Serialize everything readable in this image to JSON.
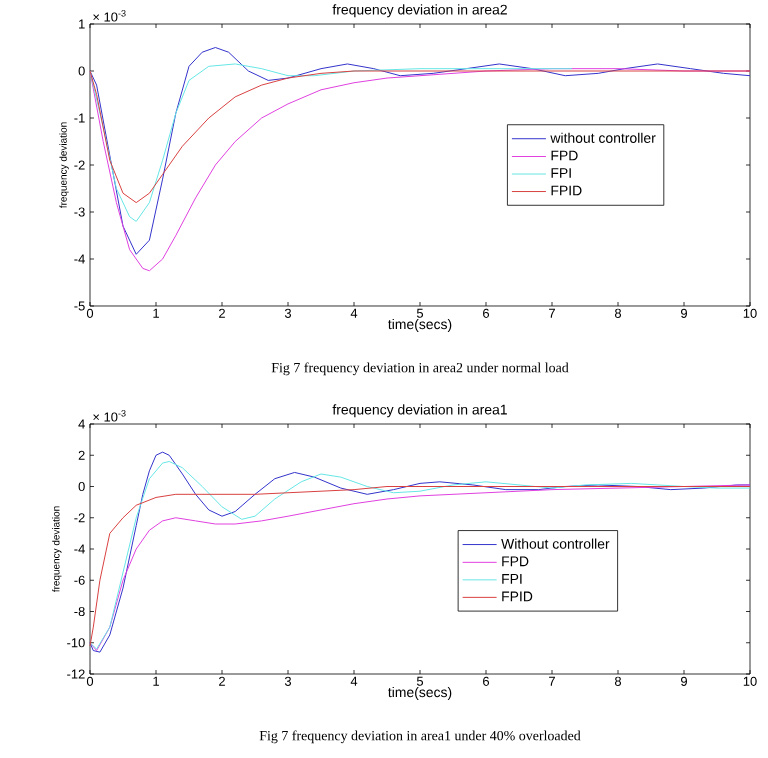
{
  "chart_data": [
    {
      "type": "line",
      "title": "frequency deviation in area2",
      "xlabel": "time(secs)",
      "ylabel": "frequency deviation",
      "annotations": [
        "× 10$^{-3}$",
        "Fig 7  frequency deviation in area2 under normal load"
      ],
      "xlim": [
        0,
        10
      ],
      "ylim": [
        -5,
        1
      ],
      "xticks": [
        0,
        1,
        2,
        3,
        4,
        5,
        6,
        7,
        8,
        9,
        10
      ],
      "yticks": [
        -5,
        -4,
        -3,
        -2,
        -1,
        0,
        1
      ],
      "legend": "right",
      "grid": false,
      "marker": "none",
      "line_style": "solid",
      "series": [
        {
          "name": "without controller",
          "color": "#3333cc",
          "x": [
            0,
            0.1,
            0.3,
            0.5,
            0.7,
            0.9,
            1.1,
            1.3,
            1.5,
            1.7,
            1.9,
            2.1,
            2.4,
            2.7,
            3.0,
            3.5,
            3.9,
            4.3,
            4.7,
            5.2,
            5.7,
            6.2,
            6.7,
            7.2,
            7.7,
            8.1,
            8.6,
            9.1,
            9.6,
            10
          ],
          "values": [
            0,
            -0.3,
            -1.8,
            -3.3,
            -3.9,
            -3.6,
            -2.3,
            -0.9,
            0.1,
            0.4,
            0.5,
            0.4,
            0,
            -0.2,
            -0.15,
            0.05,
            0.15,
            0.05,
            -0.1,
            -0.05,
            0.05,
            0.15,
            0.05,
            -0.1,
            -0.05,
            0.05,
            0.15,
            0.05,
            -0.05,
            -0.1
          ]
        },
        {
          "name": "FPD",
          "color": "#e040e0",
          "x": [
            0,
            0.2,
            0.4,
            0.6,
            0.8,
            0.9,
            1.1,
            1.3,
            1.6,
            1.9,
            2.2,
            2.6,
            3.0,
            3.5,
            4.0,
            4.5,
            5,
            6,
            7,
            8,
            9,
            10
          ],
          "values": [
            0,
            -1.5,
            -2.8,
            -3.8,
            -4.2,
            -4.25,
            -4.0,
            -3.5,
            -2.7,
            -2.0,
            -1.5,
            -1.0,
            -0.7,
            -0.4,
            -0.25,
            -0.15,
            -0.1,
            0,
            0.05,
            0.05,
            0,
            0
          ]
        },
        {
          "name": "FPI",
          "color": "#66e6e6",
          "x": [
            0,
            0.2,
            0.4,
            0.6,
            0.7,
            0.9,
            1.1,
            1.3,
            1.5,
            1.8,
            2.2,
            2.6,
            3.0,
            3.4,
            4,
            5,
            6,
            7,
            7.3
          ],
          "values": [
            0,
            -1.2,
            -2.5,
            -3.1,
            -3.2,
            -2.8,
            -1.9,
            -0.9,
            -0.2,
            0.1,
            0.15,
            0.05,
            -0.1,
            -0.1,
            0,
            0.05,
            0.05,
            0.05,
            0.05
          ]
        },
        {
          "name": "FPID",
          "color": "#d94040",
          "x": [
            0,
            0.1,
            0.3,
            0.5,
            0.7,
            0.9,
            1.1,
            1.4,
            1.8,
            2.2,
            2.6,
            3.0,
            3.5,
            4,
            5,
            10
          ],
          "values": [
            0,
            -0.5,
            -1.9,
            -2.6,
            -2.8,
            -2.6,
            -2.2,
            -1.6,
            -1.0,
            -0.55,
            -0.3,
            -0.15,
            -0.05,
            0,
            0,
            0
          ]
        }
      ]
    },
    {
      "type": "line",
      "title": "frequency deviation in area1",
      "xlabel": "time(secs)",
      "ylabel": "frequency deviation",
      "annotations": [
        "× 10$^{-3}$",
        "Fig 7 frequency deviation in area1 under 40% overloaded"
      ],
      "xlim": [
        0,
        10
      ],
      "ylim": [
        -12,
        4
      ],
      "xticks": [
        0,
        1,
        2,
        3,
        4,
        5,
        6,
        7,
        8,
        9,
        10
      ],
      "yticks": [
        -12,
        -10,
        -8,
        -6,
        -4,
        -2,
        0,
        2,
        4
      ],
      "legend": "bottom right",
      "grid": false,
      "marker": "none",
      "line_style": "solid",
      "series": [
        {
          "name": "Without controller",
          "color": "#3333cc",
          "x": [
            0,
            0.05,
            0.15,
            0.3,
            0.5,
            0.7,
            0.8,
            0.9,
            1.0,
            1.1,
            1.2,
            1.4,
            1.6,
            1.8,
            2.0,
            2.2,
            2.5,
            2.8,
            3.1,
            3.4,
            3.8,
            4.2,
            4.6,
            5.0,
            5.3,
            5.8,
            6.3,
            6.8,
            7.2,
            7.7,
            8.3,
            8.8,
            9.3,
            9.8,
            10
          ],
          "values": [
            -10,
            -10.5,
            -10.6,
            -9.5,
            -6.5,
            -2.5,
            -0.5,
            1,
            2,
            2.2,
            2,
            0.8,
            -0.5,
            -1.5,
            -1.9,
            -1.6,
            -0.5,
            0.5,
            0.9,
            0.6,
            -0.1,
            -0.5,
            -0.2,
            0.2,
            0.3,
            0.1,
            -0.2,
            -0.2,
            0,
            0.1,
            0,
            -0.2,
            -0.1,
            0.1,
            0.1
          ]
        },
        {
          "name": "FPD",
          "color": "#e040e0",
          "x": [
            0,
            0.1,
            0.3,
            0.5,
            0.7,
            0.9,
            1.1,
            1.3,
            1.6,
            1.9,
            2.2,
            2.6,
            3.0,
            3.5,
            4.0,
            4.5,
            5,
            6,
            7,
            8,
            9,
            10
          ],
          "values": [
            -10,
            -10.5,
            -9,
            -6,
            -4,
            -2.8,
            -2.2,
            -2.0,
            -2.2,
            -2.4,
            -2.4,
            -2.2,
            -1.9,
            -1.5,
            -1.1,
            -0.8,
            -0.6,
            -0.4,
            -0.2,
            -0.1,
            0,
            0.1
          ]
        },
        {
          "name": "FPI",
          "color": "#66e6e6",
          "x": [
            0,
            0.1,
            0.3,
            0.5,
            0.7,
            0.9,
            1.1,
            1.2,
            1.4,
            1.7,
            2.0,
            2.3,
            2.5,
            2.8,
            3.2,
            3.5,
            3.8,
            4.2,
            4.6,
            5.0,
            5.5,
            6.0,
            6.5,
            7,
            7.5,
            8.2,
            8.6,
            9,
            9.5,
            10
          ],
          "values": [
            -10,
            -10.4,
            -9,
            -5.5,
            -2,
            0.5,
            1.5,
            1.6,
            1.2,
            0,
            -1.3,
            -2.1,
            -1.9,
            -0.8,
            0.3,
            0.8,
            0.6,
            0,
            -0.4,
            -0.3,
            0.1,
            0.3,
            0.1,
            -0.1,
            0.1,
            0.2,
            0.1,
            0,
            -0.1,
            -0.1
          ]
        },
        {
          "name": "FPID",
          "color": "#d94040",
          "x": [
            0,
            0.05,
            0.15,
            0.3,
            0.5,
            0.7,
            1.0,
            1.3,
            2,
            2.5,
            3,
            3.5,
            4,
            4.5,
            5,
            10
          ],
          "values": [
            -10.2,
            -9,
            -6,
            -3,
            -2,
            -1.2,
            -0.7,
            -0.5,
            -0.5,
            -0.5,
            -0.4,
            -0.3,
            -0.2,
            0,
            0,
            0
          ]
        }
      ]
    }
  ]
}
